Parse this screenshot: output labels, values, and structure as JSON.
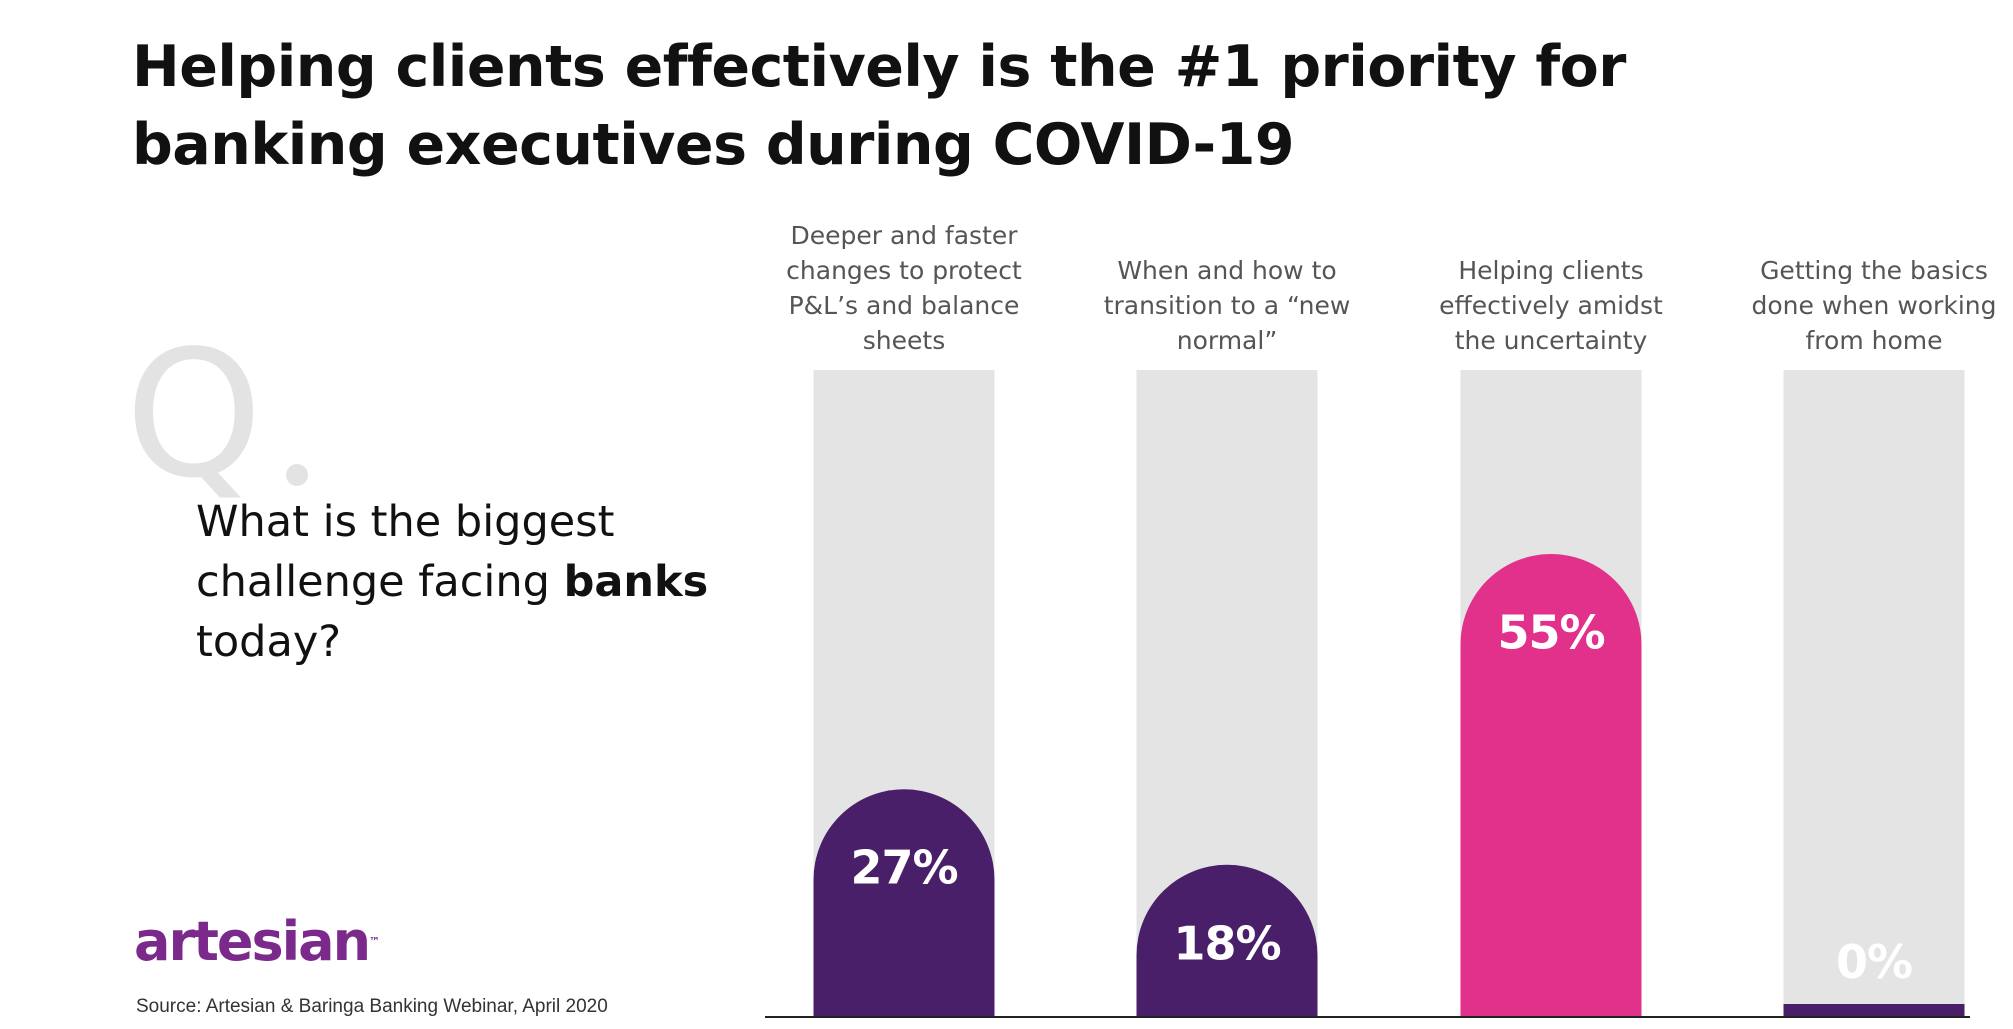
{
  "title": "Helping clients effectively is the #1 priority for banking executives during COVID-19",
  "question": {
    "mark": "Q",
    "text_before": "What is the biggest challenge facing ",
    "text_bold": "banks",
    "text_after": " today?"
  },
  "logo": {
    "text": "artesian",
    "trademark": "™"
  },
  "source": "Source: Artesian & Baringa Banking Webinar, April 2020",
  "colors": {
    "primary_bar": "#4a1f6a",
    "highlight_bar": "#e2318a",
    "track": "#e4e4e4",
    "axis": "#222222"
  },
  "chart_data": {
    "type": "bar",
    "categories": [
      "Deeper and faster changes to protect P&L’s and balance sheets",
      "When and how to transition to a “new normal”",
      "Helping clients effectively amidst the uncertainty",
      "Getting the basics done when working from home"
    ],
    "values": [
      27,
      18,
      55,
      0
    ],
    "value_labels": [
      "27%",
      "18%",
      "55%",
      "0%"
    ],
    "highlight_index": 2,
    "ylim": [
      0,
      100
    ],
    "grid": false,
    "legend": "none"
  }
}
